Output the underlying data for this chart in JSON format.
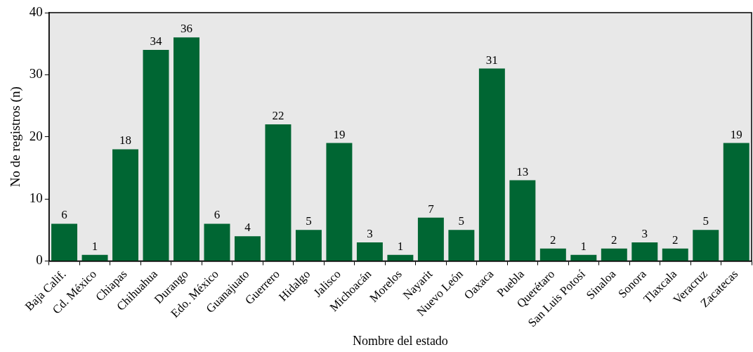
{
  "chart_data": {
    "type": "bar",
    "xlabel": "Nombre del estado",
    "ylabel": "No de registros (n)",
    "categories": [
      "Baja Calif.",
      "Cd. México",
      "Chiapas",
      "Chihuahua",
      "Durango",
      "Edo. México",
      "Guanajuato",
      "Guerrero",
      "Hidalgo",
      "Jalisco",
      "Michoacán",
      "Morelos",
      "Nayarit",
      "Nuevo León",
      "Oaxaca",
      "Puebla",
      "Querétaro",
      "San Luis Potosí",
      "Sinaloa",
      "Sonora",
      "Tlaxcala",
      "Veracruz",
      "Zacatecas"
    ],
    "values": [
      6,
      1,
      18,
      34,
      36,
      6,
      4,
      22,
      5,
      19,
      3,
      1,
      7,
      5,
      31,
      13,
      2,
      1,
      2,
      3,
      2,
      5,
      19
    ],
    "color": "#006633",
    "ylim": [
      0,
      40
    ],
    "yticks": [
      0,
      10,
      20,
      30,
      40
    ],
    "grid": false,
    "legend": false,
    "data_labels": true
  }
}
